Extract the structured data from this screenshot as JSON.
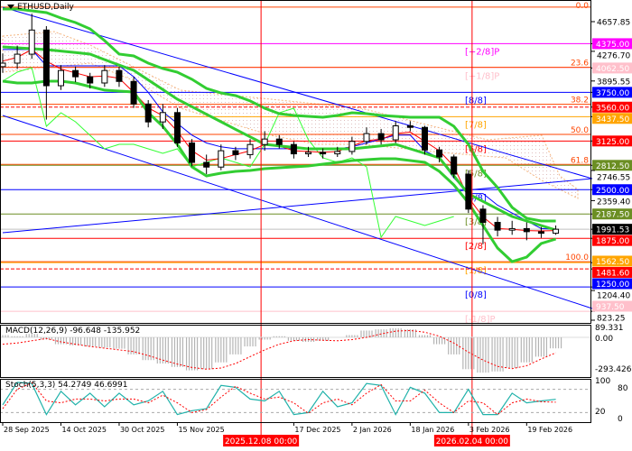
{
  "header": {
    "symbol_timeframe": "ETHUSD,Daily"
  },
  "macd_panel": {
    "label": "MACD(12,26,9) -96.648 -135.952",
    "ticks": [
      "89.331",
      "0.00",
      "-293.426"
    ]
  },
  "stoch_panel": {
    "label": "Stoch(5,3,3) 54.2749 46.6991",
    "ticks": [
      "100",
      "80",
      "20",
      "0"
    ]
  },
  "chart_data": {
    "type": "candlestick",
    "title": "ETHUSD,Daily",
    "colors": {
      "bands": "#32cd32",
      "ma": "#ff0000",
      "kijun": "#0000ff",
      "lagging": "#33ff33",
      "fibo": "#ff4500",
      "macd_hist": "#b4b4b4",
      "macd_signal": "#ff0000",
      "stoch_k": "#20b2aa",
      "stoch_d": "#ff0000"
    },
    "dates": [
      "2025-09-28",
      "2025-10-02",
      "2025-10-06",
      "2025-10-10",
      "2025-10-14",
      "2025-10-18",
      "2025-10-22",
      "2025-10-26",
      "2025-10-30",
      "2025-11-03",
      "2025-11-07",
      "2025-11-11",
      "2025-11-15",
      "2025-11-19",
      "2025-11-23",
      "2025-11-27",
      "2025-12-01",
      "2025-12-05",
      "2025-12-09",
      "2025-12-13",
      "2025-12-17",
      "2025-12-21",
      "2025-12-25",
      "2025-12-29",
      "2026-01-02",
      "2026-01-06",
      "2026-01-10",
      "2026-01-14",
      "2026-01-18",
      "2026-01-22",
      "2026-01-26",
      "2026-01-30",
      "2026-02-03",
      "2026-02-07",
      "2026-02-11",
      "2026-02-15",
      "2026-02-19",
      "2026-02-23",
      "2026-02-27"
    ],
    "open": [
      4080,
      4125,
      4240,
      4550,
      3835,
      4030,
      3950,
      3870,
      4030,
      3890,
      3600,
      3370,
      3490,
      3100,
      2850,
      2790,
      3000,
      2950,
      3080,
      3150,
      3080,
      2960,
      2980,
      2960,
      2990,
      3120,
      3220,
      3140,
      3320,
      3300,
      3010,
      2920,
      2700,
      2250,
      2080,
      1980,
      2000,
      1960,
      1940
    ],
    "high": [
      4250,
      4350,
      4760,
      4600,
      4100,
      4080,
      4000,
      4100,
      4080,
      3950,
      3650,
      3600,
      3550,
      3150,
      2950,
      3080,
      3050,
      3150,
      3250,
      3200,
      3120,
      3050,
      3030,
      3050,
      3180,
      3300,
      3280,
      3380,
      3380,
      3320,
      3050,
      2950,
      2750,
      2300,
      2150,
      2100,
      2080,
      2020,
      2040
    ],
    "low": [
      4000,
      4050,
      4180,
      3400,
      3780,
      3880,
      3800,
      3820,
      3820,
      3550,
      3300,
      3280,
      3050,
      2800,
      2700,
      2750,
      2880,
      2900,
      3000,
      3030,
      2900,
      2920,
      2900,
      2920,
      2950,
      3080,
      3080,
      3100,
      3250,
      2950,
      2850,
      2650,
      2200,
      1800,
      1900,
      1920,
      1850,
      1880,
      1920
    ],
    "close": [
      4125,
      4240,
      4550,
      3835,
      4030,
      3950,
      3870,
      4030,
      3890,
      3600,
      3370,
      3490,
      3100,
      2850,
      2790,
      3000,
      2950,
      3080,
      3150,
      3080,
      2960,
      2980,
      2960,
      2990,
      3120,
      3220,
      3140,
      3320,
      3300,
      3010,
      2920,
      2700,
      2250,
      2080,
      1980,
      2000,
      1960,
      1940,
      1991.53
    ],
    "bb_upper": [
      4820,
      4820,
      4797,
      4774,
      4704,
      4646,
      4565,
      4415,
      4241,
      4218,
      4125,
      4055,
      4009,
      3917,
      3801,
      3743,
      3708,
      3639,
      3546,
      3476,
      3453,
      3442,
      3430,
      3453,
      3488,
      3476,
      3453,
      3442,
      3430,
      3430,
      3430,
      3314,
      3082,
      2735,
      2527,
      2272,
      2132,
      2098,
      2098
    ],
    "bb_middle": [
      4333,
      4322,
      4310,
      4299,
      4280,
      4260,
      4241,
      4170,
      4100,
      4032,
      3910,
      3785,
      3661,
      3565,
      3468,
      3372,
      3275,
      3179,
      3082,
      3063,
      3043,
      3024,
      3024,
      3024,
      3024,
      3043,
      3063,
      3082,
      3024,
      2966,
      2908,
      2677,
      2445,
      2349,
      2252,
      2156,
      2098,
      2040,
      1982
    ],
    "bb_lower": [
      3893,
      3870,
      3870,
      3893,
      3893,
      3870,
      3824,
      3778,
      3766,
      3754,
      3488,
      3314,
      3082,
      2793,
      2677,
      2712,
      2735,
      2746,
      2770,
      2781,
      2793,
      2804,
      2827,
      2851,
      2874,
      2885,
      2897,
      2897,
      2874,
      2851,
      2735,
      2561,
      2330,
      2040,
      1750,
      1576,
      1634,
      1808,
      1866
    ],
    "ma_fast": [
      4150,
      4200,
      4300,
      4150,
      4050,
      4000,
      3950,
      3960,
      3930,
      3750,
      3550,
      3450,
      3250,
      3000,
      2880,
      2900,
      2950,
      3000,
      3080,
      3060,
      3000,
      2990,
      2980,
      2990,
      3060,
      3130,
      3150,
      3220,
      3240,
      3120,
      3000,
      2800,
      2400,
      2150,
      2000,
      1990,
      1975,
      1970,
      1975
    ],
    "kijun": [
      4300,
      4300,
      4300,
      4090,
      4090,
      4090,
      4090,
      4090,
      4090,
      3950,
      3750,
      3500,
      3350,
      3200,
      3100,
      3050,
      3025,
      3025,
      3025,
      3025,
      3025,
      3025,
      3025,
      3025,
      3050,
      3100,
      3150,
      3200,
      3200,
      3000,
      2900,
      2650,
      2450,
      2450,
      2300,
      2200,
      2100,
      2000,
      1990
    ],
    "lagging": [
      3893,
      4009,
      4067,
      3314,
      3488,
      3372,
      3198,
      3024,
      3082,
      3082,
      3024,
      2966,
      3024,
      2793,
      2851,
      2908,
      2851,
      2793,
      3082,
      3488,
      3546,
      3140,
      2908,
      2851,
      2908,
      2793,
      1889,
      2156,
      2098,
      2040,
      2098,
      2156,
      null,
      null,
      null,
      null,
      null,
      null,
      null
    ],
    "trendlines": [
      {
        "from": [
          "2025-09-28",
          4843
        ],
        "to": [
          "2026-03-09",
          2642
        ],
        "color": "#0000ff"
      },
      {
        "from": [
          "2025-09-28",
          3453
        ],
        "to": [
          "2026-03-09",
          974
        ],
        "color": "#0000ff"
      },
      {
        "from": [
          "2025-09-28",
          1947
        ],
        "to": [
          "2026-03-09",
          2642
        ],
        "color": "#0000ff"
      }
    ],
    "levels": [
      {
        "price": 4375,
        "label": "4375.00",
        "color": "#ff00ff",
        "text": "#ffffff",
        "murrey": "[+2/8]P"
      },
      {
        "price": 4062.5,
        "label": "4062.50",
        "color": "#ffc0cb",
        "text": "#ffffff",
        "murrey": "[+1/8]P"
      },
      {
        "price": 3750,
        "label": "3750.00",
        "color": "#0000ff",
        "text": "#ffffff",
        "murrey": "[8/8]"
      },
      {
        "price": 3560,
        "label": "3560.00",
        "color": "#ff0000",
        "text": "#ffffff",
        "dashed": true
      },
      {
        "price": 3437.5,
        "label": "3437.50",
        "color": "#ffa500",
        "text": "#ffffff",
        "murrey": "[7/8]"
      },
      {
        "price": 3125,
        "label": "3125.00",
        "color": "#ff0000",
        "text": "#ffffff",
        "murrey": "[6/8]"
      },
      {
        "price": 2812.5,
        "label": "2812.50",
        "color": "#6b8e23",
        "text": "#ffffff",
        "murrey": "[5/8]"
      },
      {
        "price": 2500,
        "label": "2500.00",
        "color": "#0000ff",
        "text": "#ffffff",
        "murrey": "[4/8]"
      },
      {
        "price": 2187.5,
        "label": "2187.50",
        "color": "#6b8e23",
        "text": "#ffffff",
        "murrey": "[3/8]"
      },
      {
        "price": 1991.53,
        "label": "1991.53",
        "color": "#000000",
        "text": "#ffffff",
        "line": "#c0c0c0"
      },
      {
        "price": 1875,
        "label": "1875.00",
        "color": "#ff0000",
        "text": "#ffffff",
        "murrey": "[2/8]"
      },
      {
        "price": 1562.5,
        "label": "1562.50",
        "color": "#ffa500",
        "text": "#ffffff",
        "murrey": "[1/8]"
      },
      {
        "price": 1481.6,
        "label": "1481.60",
        "color": "#ff0000",
        "text": "#ffffff",
        "dashed": true
      },
      {
        "price": 1250,
        "label": "1250.00",
        "color": "#0000ff",
        "text": "#ffffff",
        "murrey": "[0/8]"
      },
      {
        "price": 937.5,
        "label": "937.50",
        "color": "#ffc0cb",
        "text": "#ffffff",
        "murrey": "[-1/8]P"
      }
    ],
    "fibo": [
      {
        "label": "0.0",
        "price": 4845
      },
      {
        "label": "23.6",
        "price": 4073
      },
      {
        "label": "38.2",
        "price": 3596
      },
      {
        "label": "50.0",
        "price": 3210
      },
      {
        "label": "61.8",
        "price": 2824
      },
      {
        "label": "100.0",
        "price": 1575
      }
    ],
    "price_ticks": [
      "4657.85",
      "4276.70",
      "3895.55",
      "2746.55",
      "2359.40",
      "1204.40",
      "823.25"
    ],
    "price_tick_values": [
      4657.85,
      4276.7,
      3895.55,
      2746.55,
      2359.4,
      1204.4,
      823.25
    ],
    "x_ticks": [
      {
        "date": "2025-09-28",
        "label": "28 Sep 2025"
      },
      {
        "date": "2025-10-14",
        "label": "14 Oct 2025"
      },
      {
        "date": "2025-10-30",
        "label": "30 Oct 2025"
      },
      {
        "date": "2025-11-15",
        "label": "15 Nov 2025"
      },
      {
        "date": "2025-12-17",
        "label": "17 Dec 2025"
      },
      {
        "date": "2026-01-02",
        "label": "2 Jan 2026"
      },
      {
        "date": "2026-01-18",
        "label": "18 Jan 2026"
      },
      {
        "date": "2026-02-03",
        "label": "3 Feb 2026"
      },
      {
        "date": "2026-02-19",
        "label": "19 Feb 2026"
      }
    ],
    "vertical_markers": [
      {
        "date": "2025-12-08",
        "label": "2025.12.08 00:00"
      },
      {
        "date": "2026-02-04",
        "label": "2026.02.04 00:00"
      }
    ],
    "macd": {
      "main": [
        20,
        10,
        30,
        -20,
        -60,
        -70,
        -80,
        -90,
        -100,
        -150,
        -200,
        -230,
        -260,
        -290,
        -280,
        -220,
        -150,
        -80,
        -20,
        10,
        -30,
        -40,
        -30,
        0,
        20,
        60,
        70,
        80,
        70,
        20,
        -60,
        -150,
        -280,
        -310,
        -300,
        -270,
        -220,
        -170,
        -96.648
      ],
      "signal": [
        -60,
        -50,
        -30,
        -10,
        -40,
        -60,
        -80,
        -95,
        -110,
        -125,
        -160,
        -200,
        -235,
        -265,
        -280,
        -270,
        -230,
        -170,
        -110,
        -60,
        -30,
        -20,
        -25,
        -30,
        -20,
        0,
        30,
        55,
        60,
        45,
        10,
        -50,
        -130,
        -200,
        -255,
        -275,
        -250,
        -190,
        -135.952
      ],
      "ylim": [
        -293.426,
        89.331
      ]
    },
    "stoch": {
      "k": [
        40,
        98,
        95,
        15,
        75,
        40,
        70,
        35,
        70,
        40,
        50,
        75,
        15,
        25,
        30,
        90,
        85,
        55,
        50,
        75,
        15,
        20,
        75,
        35,
        45,
        95,
        90,
        15,
        85,
        70,
        20,
        20,
        80,
        15,
        15,
        70,
        45,
        50,
        54.2749
      ],
      "d": [
        30,
        80,
        97,
        50,
        45,
        55,
        55,
        50,
        55,
        55,
        45,
        65,
        45,
        20,
        28,
        60,
        88,
        70,
        55,
        60,
        45,
        18,
        45,
        55,
        40,
        70,
        92,
        50,
        50,
        78,
        45,
        20,
        50,
        45,
        15,
        45,
        55,
        48,
        46.6991
      ],
      "levels": [
        80,
        20
      ],
      "ylim": [
        0,
        100
      ]
    },
    "ylim": [
      823.25,
      4657.85
    ]
  }
}
